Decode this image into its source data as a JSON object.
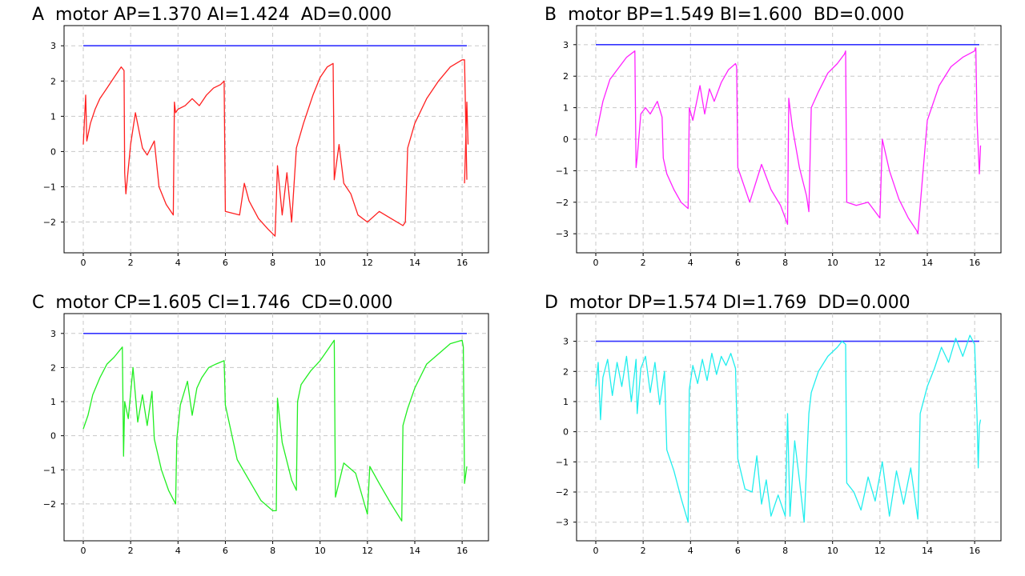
{
  "chart_data": [
    {
      "type": "line",
      "title": "A  motor AP=1.370 AI=1.424  AD=0.000",
      "xlim": [
        0,
        16.3
      ],
      "ylim": [
        -2.6,
        3.3
      ],
      "xticks": [
        0,
        2,
        4,
        6,
        8,
        10,
        12,
        14,
        16
      ],
      "yticks": [
        -2,
        -1,
        0,
        1,
        2,
        3
      ],
      "grid": true,
      "series": [
        {
          "role": "setpoint",
          "color": "#3333ff",
          "x": [
            0,
            16.2
          ],
          "y": [
            3,
            3
          ]
        },
        {
          "role": "response",
          "color": "#ff2020",
          "x": [
            0,
            0.1,
            0.15,
            0.3,
            0.5,
            0.7,
            1.0,
            1.3,
            1.6,
            1.72,
            1.75,
            1.8,
            2.0,
            2.2,
            2.5,
            2.7,
            3.0,
            3.2,
            3.5,
            3.8,
            3.85,
            3.9,
            4.0,
            4.3,
            4.6,
            4.9,
            5.2,
            5.5,
            5.8,
            5.95,
            6.0,
            6.3,
            6.6,
            6.8,
            7.0,
            7.4,
            7.8,
            8.1,
            8.2,
            8.4,
            8.6,
            8.8,
            9.0,
            9.3,
            9.7,
            10.0,
            10.3,
            10.55,
            10.6,
            10.8,
            11.0,
            11.3,
            11.6,
            12.0,
            12.5,
            13.0,
            13.5,
            13.6,
            13.7,
            14.0,
            14.5,
            15.0,
            15.5,
            16.0,
            16.1,
            16.2
          ],
          "y": [
            0.2,
            1.6,
            0.3,
            0.8,
            1.2,
            1.5,
            1.8,
            2.1,
            2.4,
            2.3,
            -0.6,
            -1.2,
            0.2,
            1.1,
            0.1,
            -0.1,
            0.3,
            -1.0,
            -1.5,
            -1.8,
            1.4,
            1.1,
            1.2,
            1.3,
            1.5,
            1.3,
            1.6,
            1.8,
            1.9,
            2.0,
            -1.7,
            -1.75,
            -1.8,
            -0.9,
            -1.4,
            -1.9,
            -2.2,
            -2.4,
            -0.4,
            -1.8,
            -0.6,
            -2.0,
            0.1,
            0.8,
            1.6,
            2.1,
            2.4,
            2.5,
            -0.8,
            0.2,
            -0.9,
            -1.2,
            -1.8,
            -2.0,
            -1.7,
            -1.9,
            -2.1,
            -2.0,
            0.1,
            0.8,
            1.5,
            2.0,
            2.4,
            2.6,
            2.6,
            -0.8
          ]
        },
        {
          "role": "response-tail",
          "color": "#ff2020",
          "x": [
            16.1,
            16.2,
            16.25
          ],
          "y": [
            -0.9,
            1.4,
            0.2
          ]
        }
      ]
    },
    {
      "type": "line",
      "title": "B  motor BP=1.549 BI=1.600  BD=0.000",
      "xlim": [
        0,
        16.3
      ],
      "ylim": [
        -3.3,
        3.3
      ],
      "xticks": [
        0,
        2,
        4,
        6,
        8,
        10,
        12,
        14,
        16
      ],
      "yticks": [
        -3,
        -2,
        -1,
        0,
        1,
        2,
        3
      ],
      "grid": true,
      "series": [
        {
          "role": "setpoint",
          "color": "#3333ff",
          "x": [
            0,
            16.2
          ],
          "y": [
            3,
            3
          ]
        },
        {
          "role": "response",
          "color": "#ff22ff",
          "x": [
            0,
            0.3,
            0.6,
            1.0,
            1.3,
            1.65,
            1.7,
            1.75,
            1.9,
            2.1,
            2.3,
            2.6,
            2.8,
            2.85,
            3.0,
            3.3,
            3.6,
            3.9,
            3.95,
            4.1,
            4.4,
            4.6,
            4.8,
            5.0,
            5.3,
            5.6,
            5.9,
            5.95,
            6.0,
            6.5,
            7.0,
            7.4,
            7.8,
            8.1,
            8.15,
            8.3,
            8.6,
            8.9,
            9.0,
            9.1,
            9.4,
            9.8,
            10.2,
            10.5,
            10.55,
            10.6,
            11.0,
            11.5,
            12.0,
            12.1,
            12.4,
            12.8,
            13.2,
            13.55,
            13.6,
            14.0,
            14.5,
            15.0,
            15.5,
            16.0,
            16.05,
            16.1,
            16.2,
            16.25
          ],
          "y": [
            0.1,
            1.2,
            1.9,
            2.3,
            2.6,
            2.8,
            -0.9,
            -0.6,
            0.8,
            1.0,
            0.8,
            1.2,
            0.7,
            -0.6,
            -1.1,
            -1.6,
            -2.0,
            -2.2,
            1.0,
            0.6,
            1.7,
            0.8,
            1.6,
            1.2,
            1.8,
            2.2,
            2.4,
            2.3,
            -0.9,
            -2.0,
            -0.8,
            -1.6,
            -2.1,
            -2.7,
            1.3,
            0.4,
            -0.9,
            -1.8,
            -2.3,
            1.0,
            1.5,
            2.1,
            2.4,
            2.7,
            2.8,
            -2.0,
            -2.1,
            -2.0,
            -2.5,
            0.0,
            -1.0,
            -1.9,
            -2.5,
            -2.9,
            -3.0,
            0.6,
            1.7,
            2.3,
            2.6,
            2.8,
            2.9,
            0.6,
            -1.1,
            -0.2
          ]
        }
      ]
    },
    {
      "type": "line",
      "title": "C  motor CP=1.605 CI=1.746  CD=0.000",
      "xlim": [
        0,
        16.3
      ],
      "ylim": [
        -2.8,
        3.3
      ],
      "xticks": [
        0,
        2,
        4,
        6,
        8,
        10,
        12,
        14,
        16
      ],
      "yticks": [
        -2,
        -1,
        0,
        1,
        2,
        3
      ],
      "grid": true,
      "series": [
        {
          "role": "setpoint",
          "color": "#3333ff",
          "x": [
            0,
            16.2
          ],
          "y": [
            3,
            3
          ]
        },
        {
          "role": "response",
          "color": "#22ee22",
          "x": [
            0,
            0.2,
            0.4,
            0.7,
            1.0,
            1.3,
            1.65,
            1.7,
            1.75,
            1.9,
            2.1,
            2.3,
            2.5,
            2.7,
            2.9,
            3.0,
            3.3,
            3.6,
            3.9,
            3.95,
            4.1,
            4.4,
            4.6,
            4.8,
            5.0,
            5.3,
            5.6,
            5.95,
            6.0,
            6.5,
            7.0,
            7.5,
            8.0,
            8.15,
            8.2,
            8.4,
            8.8,
            9.0,
            9.05,
            9.2,
            9.6,
            10.0,
            10.3,
            10.6,
            10.65,
            11.0,
            11.5,
            12.0,
            12.1,
            12.5,
            13.0,
            13.45,
            13.5,
            13.7,
            14.0,
            14.5,
            15.0,
            15.5,
            16.0,
            16.05,
            16.1,
            16.2
          ],
          "y": [
            0.2,
            0.6,
            1.2,
            1.7,
            2.1,
            2.3,
            2.6,
            -0.6,
            1.0,
            0.5,
            2.0,
            0.4,
            1.2,
            0.3,
            1.3,
            -0.1,
            -1.0,
            -1.6,
            -2.0,
            -0.1,
            0.9,
            1.6,
            0.6,
            1.4,
            1.7,
            2.0,
            2.1,
            2.2,
            0.9,
            -0.7,
            -1.3,
            -1.9,
            -2.2,
            -2.2,
            1.1,
            -0.2,
            -1.3,
            -1.6,
            1.0,
            1.5,
            1.9,
            2.2,
            2.5,
            2.8,
            -1.8,
            -0.8,
            -1.1,
            -2.3,
            -0.9,
            -1.4,
            -2.0,
            -2.5,
            0.3,
            0.8,
            1.4,
            2.1,
            2.4,
            2.7,
            2.8,
            2.6,
            -1.4,
            -0.9
          ]
        }
      ]
    },
    {
      "type": "line",
      "title": "D  motor DP=1.574 DI=1.769  DD=0.000",
      "xlim": [
        0,
        16.3
      ],
      "ylim": [
        -3.3,
        3.6
      ],
      "xticks": [
        0,
        2,
        4,
        6,
        8,
        10,
        12,
        14,
        16
      ],
      "yticks": [
        -3,
        -2,
        -1,
        0,
        1,
        2,
        3
      ],
      "grid": true,
      "series": [
        {
          "role": "setpoint",
          "color": "#3333ff",
          "x": [
            0,
            16.2
          ],
          "y": [
            3,
            3
          ]
        },
        {
          "role": "response",
          "color": "#22eeee",
          "x": [
            0,
            0.1,
            0.2,
            0.3,
            0.5,
            0.7,
            0.9,
            1.1,
            1.3,
            1.5,
            1.7,
            1.75,
            1.9,
            2.1,
            2.3,
            2.5,
            2.7,
            2.9,
            3.0,
            3.3,
            3.6,
            3.9,
            3.95,
            4.1,
            4.3,
            4.5,
            4.7,
            4.9,
            5.1,
            5.3,
            5.5,
            5.7,
            5.9,
            6.0,
            6.3,
            6.6,
            6.8,
            7.0,
            7.2,
            7.4,
            7.7,
            8.0,
            8.1,
            8.2,
            8.4,
            8.6,
            8.8,
            9.0,
            9.1,
            9.4,
            9.8,
            10.2,
            10.4,
            10.55,
            10.6,
            10.9,
            11.2,
            11.5,
            11.8,
            12.1,
            12.4,
            12.7,
            13.0,
            13.3,
            13.6,
            13.7,
            14.0,
            14.3,
            14.6,
            14.9,
            15.2,
            15.5,
            15.8,
            16.0,
            16.1,
            16.15,
            16.2,
            16.25
          ],
          "y": [
            1.5,
            2.3,
            0.4,
            1.8,
            2.4,
            1.2,
            2.3,
            1.5,
            2.5,
            1.0,
            2.4,
            0.6,
            2.1,
            2.5,
            1.3,
            2.3,
            0.9,
            2.0,
            -0.6,
            -1.3,
            -2.2,
            -3.0,
            1.4,
            2.2,
            1.6,
            2.4,
            1.7,
            2.6,
            1.9,
            2.5,
            2.2,
            2.6,
            2.1,
            -0.9,
            -1.9,
            -2.0,
            -0.8,
            -2.4,
            -1.6,
            -2.8,
            -2.1,
            -2.8,
            0.6,
            -2.8,
            -0.3,
            -1.6,
            -3.0,
            0.6,
            1.3,
            2.0,
            2.5,
            2.8,
            3.0,
            2.9,
            -1.7,
            -2.0,
            -2.6,
            -1.5,
            -2.3,
            -1.0,
            -2.8,
            -1.3,
            -2.4,
            -1.2,
            -2.9,
            0.6,
            1.5,
            2.1,
            2.8,
            2.3,
            3.1,
            2.5,
            3.2,
            2.9,
            0.5,
            -1.2,
            0.2,
            0.4
          ]
        }
      ]
    }
  ]
}
